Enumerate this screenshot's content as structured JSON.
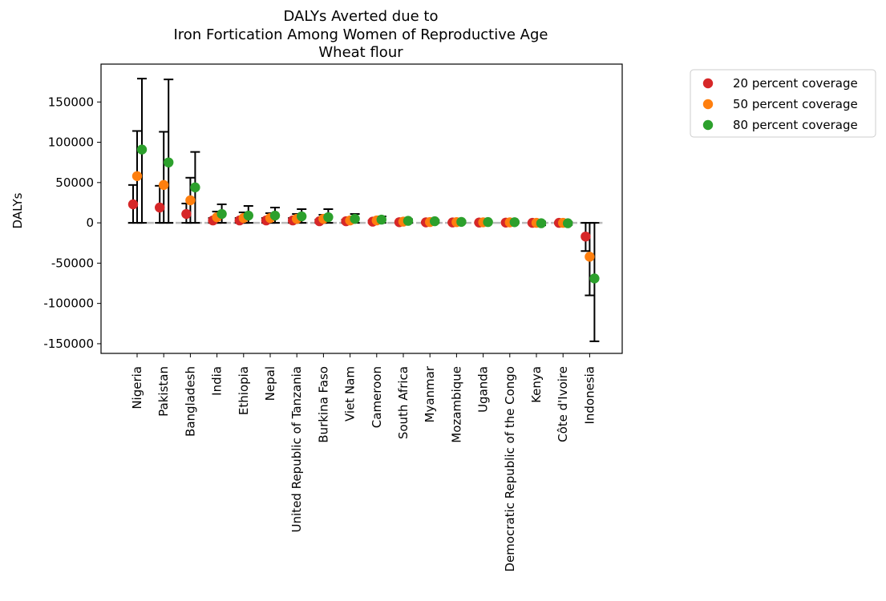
{
  "chart_data": {
    "type": "scatter",
    "title_lines": [
      "DALYs Averted due to",
      "Iron Fortication Among Women of Reproductive Age",
      "Wheat flour"
    ],
    "xlabel": "",
    "ylabel": "DALYs",
    "ylim": [
      -162000,
      197000
    ],
    "yticks": [
      -150000,
      -100000,
      -50000,
      0,
      50000,
      100000,
      150000
    ],
    "grid": false,
    "legend_position": "outside-top-right",
    "categories": [
      "Nigeria",
      "Pakistan",
      "Bangladesh",
      "India",
      "Ethiopia",
      "Nepal",
      "United Republic of Tanzania",
      "Burkina Faso",
      "Viet Nam",
      "Cameroon",
      "South Africa",
      "Myanmar",
      "Mozambique",
      "Uganda",
      "Democratic Republic of the Congo",
      "Kenya",
      "Côte d'Ivoire",
      "Indonesia"
    ],
    "series": [
      {
        "name": "20 percent coverage",
        "color": "#d62728",
        "values": [
          23000,
          19000,
          11000,
          3000,
          3000,
          3000,
          3000,
          2000,
          2000,
          1500,
          800,
          600,
          500,
          400,
          300,
          0,
          0,
          -17000
        ],
        "lower": [
          0,
          0,
          0,
          0,
          0,
          0,
          0,
          0,
          0,
          0,
          0,
          0,
          0,
          0,
          0,
          -1000,
          -1000,
          -35000
        ],
        "upper": [
          47000,
          46000,
          24000,
          6000,
          6000,
          6000,
          6000,
          4000,
          4000,
          3000,
          1600,
          1200,
          1000,
          800,
          600,
          500,
          500,
          0
        ]
      },
      {
        "name": "50 percent coverage",
        "color": "#ff7f0e",
        "values": [
          58000,
          47000,
          28000,
          7000,
          6000,
          6000,
          5000,
          5000,
          3000,
          3000,
          1500,
          1000,
          900,
          700,
          600,
          0,
          0,
          -42000
        ],
        "lower": [
          0,
          0,
          0,
          0,
          0,
          0,
          0,
          0,
          0,
          0,
          0,
          0,
          0,
          0,
          0,
          -2000,
          -1500,
          -90000
        ],
        "upper": [
          114000,
          113000,
          56000,
          14000,
          13000,
          12000,
          11000,
          10000,
          7000,
          5000,
          3000,
          2000,
          1800,
          1400,
          1200,
          1000,
          900,
          0
        ]
      },
      {
        "name": "80 percent coverage",
        "color": "#2ca02c",
        "values": [
          91000,
          75000,
          44000,
          11000,
          9000,
          9000,
          8000,
          7000,
          5000,
          4000,
          2500,
          2000,
          1200,
          1000,
          800,
          -500,
          -500,
          -69000
        ],
        "lower": [
          0,
          0,
          0,
          0,
          0,
          0,
          0,
          0,
          0,
          0,
          0,
          0,
          0,
          0,
          0,
          -3000,
          -2500,
          -147000
        ],
        "upper": [
          179000,
          178000,
          88000,
          23000,
          21000,
          19000,
          17000,
          17000,
          11000,
          8000,
          4500,
          3500,
          2500,
          2000,
          1500,
          1500,
          1200,
          0
        ]
      }
    ]
  }
}
